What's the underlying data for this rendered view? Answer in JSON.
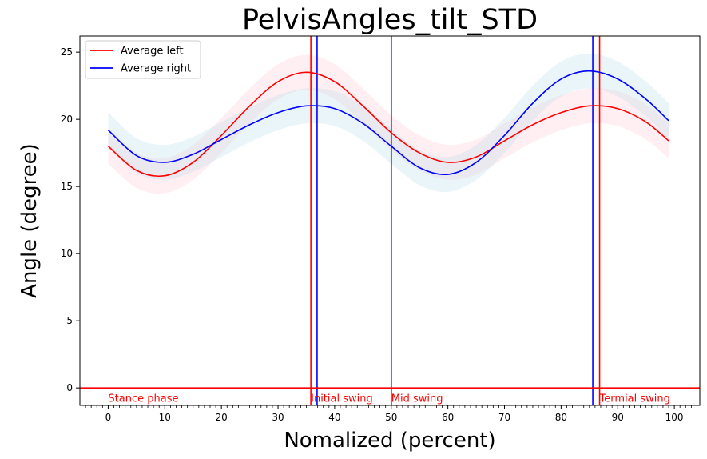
{
  "chart_data": {
    "type": "line",
    "title": "PelvisAngles_tilt_STD",
    "xlabel": "Nomalized (percent)",
    "ylabel": "Angle (degree)",
    "xlim": [
      -5,
      104.5
    ],
    "ylim": [
      -1.3,
      26.2
    ],
    "xticks": [
      0,
      10,
      20,
      30,
      40,
      50,
      60,
      70,
      80,
      90,
      100
    ],
    "yticks": [
      0,
      5,
      10,
      15,
      20,
      25
    ],
    "grid": false,
    "legend": {
      "placement": "top-left",
      "entries": [
        "Average left",
        "Average right"
      ]
    },
    "series": [
      {
        "name": "Average left",
        "color": "#ff0000",
        "band_color": "#ffc0cb",
        "x": [
          0,
          5,
          10,
          15,
          20,
          25,
          30,
          35,
          40,
          45,
          50,
          55,
          60,
          65,
          70,
          75,
          80,
          85,
          90,
          95,
          99
        ],
        "values": [
          18.0,
          16.2,
          15.8,
          16.8,
          18.8,
          21.0,
          22.8,
          23.5,
          22.8,
          21.0,
          19.0,
          17.5,
          16.8,
          17.2,
          18.4,
          19.6,
          20.5,
          21.0,
          20.8,
          19.8,
          18.4
        ],
        "std": 1.3
      },
      {
        "name": "Average right",
        "color": "#0000ff",
        "band_color": "#add8e6",
        "x": [
          0,
          5,
          10,
          15,
          20,
          25,
          30,
          35,
          40,
          45,
          50,
          55,
          60,
          65,
          70,
          75,
          80,
          85,
          90,
          95,
          99
        ],
        "values": [
          19.2,
          17.3,
          16.8,
          17.4,
          18.5,
          19.6,
          20.5,
          21.0,
          20.8,
          19.7,
          18.0,
          16.4,
          15.9,
          16.8,
          18.8,
          21.2,
          23.0,
          23.6,
          23.0,
          21.5,
          19.9
        ],
        "std": 1.3
      }
    ],
    "horizontal_lines": [
      {
        "y": 0,
        "color": "#ff0000"
      }
    ],
    "vertical_lines": [
      {
        "x": 35.8,
        "color": "#ff0000"
      },
      {
        "x": 36.9,
        "color": "#0000ff"
      },
      {
        "x": 50.0,
        "color": "#0000ff"
      },
      {
        "x": 85.6,
        "color": "#0000ff"
      },
      {
        "x": 86.8,
        "color": "#ff0000"
      }
    ],
    "annotations": [
      {
        "text": "Stance phase",
        "x": 0,
        "y": -0.8,
        "color": "#ff0000"
      },
      {
        "text": "Initial swing",
        "x": 35.8,
        "y": -0.8,
        "color": "#ff0000"
      },
      {
        "text": "Mid swing",
        "x": 50.0,
        "y": -0.8,
        "color": "#ff0000"
      },
      {
        "text": "Termial swing",
        "x": 86.8,
        "y": -0.8,
        "color": "#ff0000"
      }
    ]
  }
}
